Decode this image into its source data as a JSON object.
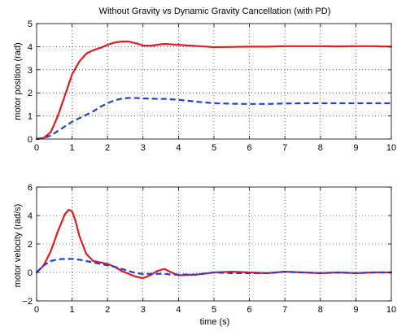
{
  "chart_data": [
    {
      "type": "line",
      "title": "Without Gravity vs Dynamic Gravity Cancellation (with PD)",
      "xlabel": "",
      "ylabel": "motor position (rad)",
      "xlim": [
        0,
        10
      ],
      "ylim": [
        0,
        5
      ],
      "xticks": [
        "0",
        "1",
        "2",
        "3",
        "4",
        "5",
        "6",
        "7",
        "8",
        "9",
        "10"
      ],
      "yticks": [
        "0",
        "1",
        "2",
        "3",
        "4",
        "5"
      ],
      "grid": true,
      "series": [
        {
          "color": "#e31a1c",
          "style": "solid",
          "x": [
            0,
            0.2,
            0.4,
            0.6,
            0.8,
            1.0,
            1.2,
            1.4,
            1.6,
            1.8,
            2.0,
            2.2,
            2.4,
            2.6,
            2.8,
            3.0,
            3.2,
            3.4,
            3.6,
            3.8,
            4.0,
            4.5,
            5.0,
            5.5,
            6.0,
            6.5,
            7.0,
            7.5,
            8.0,
            8.5,
            9.0,
            9.5,
            10.0
          ],
          "y": [
            0,
            0.05,
            0.3,
            1.0,
            1.9,
            2.8,
            3.35,
            3.7,
            3.85,
            3.95,
            4.08,
            4.18,
            4.22,
            4.22,
            4.15,
            4.05,
            4.04,
            4.08,
            4.12,
            4.1,
            4.08,
            4.03,
            3.98,
            3.99,
            4.0,
            4.0,
            4.02,
            4.02,
            4.02,
            4.01,
            4.02,
            4.02,
            4.0
          ]
        },
        {
          "color": "#1f3fdc",
          "style": "dashed",
          "x": [
            0,
            0.2,
            0.4,
            0.6,
            0.8,
            1.0,
            1.2,
            1.4,
            1.6,
            1.8,
            2.0,
            2.2,
            2.4,
            2.6,
            2.8,
            3.0,
            3.2,
            3.4,
            3.6,
            3.8,
            4.0,
            4.5,
            5.0,
            5.5,
            6.0,
            6.5,
            7.0,
            7.5,
            8.0,
            8.5,
            9.0,
            9.5,
            10.0
          ],
          "y": [
            0,
            0.05,
            0.15,
            0.35,
            0.55,
            0.75,
            0.9,
            1.05,
            1.2,
            1.4,
            1.55,
            1.68,
            1.75,
            1.78,
            1.78,
            1.76,
            1.75,
            1.74,
            1.74,
            1.72,
            1.7,
            1.62,
            1.55,
            1.53,
            1.52,
            1.52,
            1.54,
            1.55,
            1.55,
            1.55,
            1.55,
            1.55,
            1.55
          ]
        }
      ]
    },
    {
      "type": "line",
      "title": "",
      "xlabel": "time (s)",
      "ylabel": "motor velocity (rad/s)",
      "xlim": [
        0,
        10
      ],
      "ylim": [
        -2,
        6
      ],
      "xticks": [
        "0",
        "1",
        "2",
        "3",
        "4",
        "5",
        "6",
        "7",
        "8",
        "9",
        "10"
      ],
      "yticks": [
        "−2",
        "0",
        "2",
        "4",
        "6"
      ],
      "grid": true,
      "series": [
        {
          "color": "#e31a1c",
          "style": "solid",
          "x": [
            0,
            0.2,
            0.4,
            0.6,
            0.8,
            0.9,
            1.0,
            1.1,
            1.2,
            1.4,
            1.6,
            1.8,
            2.0,
            2.2,
            2.4,
            2.6,
            2.8,
            3.0,
            3.2,
            3.4,
            3.6,
            3.8,
            4.0,
            4.5,
            5.0,
            5.5,
            6.0,
            6.5,
            7.0,
            7.5,
            8.0,
            8.5,
            9.0,
            9.5,
            10.0
          ],
          "y": [
            0,
            0.5,
            1.5,
            2.9,
            4.1,
            4.4,
            4.3,
            3.6,
            2.6,
            1.3,
            0.8,
            0.7,
            0.6,
            0.4,
            0.1,
            -0.1,
            -0.3,
            -0.4,
            -0.2,
            0.1,
            0.25,
            0.0,
            -0.2,
            -0.15,
            0.0,
            0.05,
            0.0,
            -0.05,
            0.05,
            0.0,
            -0.05,
            0.0,
            -0.05,
            0.0,
            0.0
          ]
        },
        {
          "color": "#1f3fdc",
          "style": "dashed",
          "x": [
            0,
            0.2,
            0.4,
            0.6,
            0.8,
            1.0,
            1.2,
            1.4,
            1.6,
            1.8,
            2.0,
            2.2,
            2.4,
            2.6,
            2.8,
            3.0,
            3.2,
            3.4,
            3.6,
            3.8,
            4.0,
            4.5,
            5.0,
            5.5,
            6.0,
            6.5,
            7.0,
            7.5,
            8.0,
            8.5,
            9.0,
            9.5,
            10.0
          ],
          "y": [
            0,
            0.5,
            0.8,
            0.92,
            0.95,
            0.95,
            0.9,
            0.8,
            0.7,
            0.6,
            0.5,
            0.4,
            0.25,
            0.1,
            -0.05,
            -0.1,
            -0.1,
            -0.1,
            -0.1,
            -0.15,
            -0.15,
            -0.15,
            0.0,
            -0.05,
            -0.05,
            -0.05,
            0.05,
            0.0,
            -0.05,
            0.0,
            -0.05,
            0.0,
            0.0
          ]
        }
      ]
    }
  ]
}
